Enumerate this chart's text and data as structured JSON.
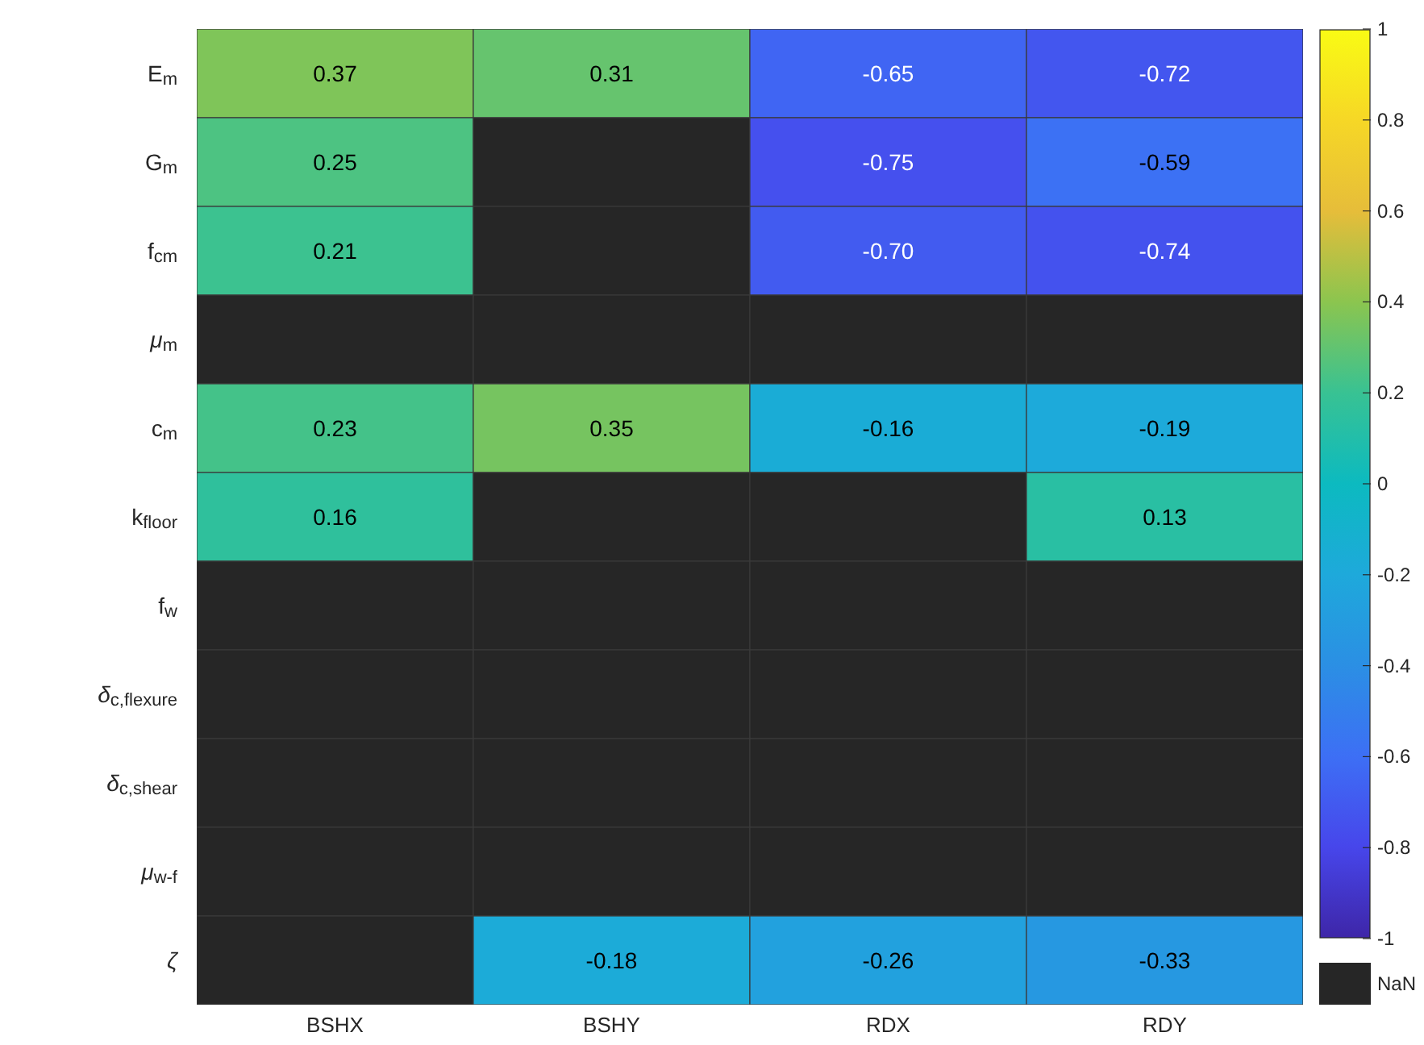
{
  "chart_data": {
    "type": "heatmap",
    "categories": [
      "BSHX",
      "BSHY",
      "RDX",
      "RDY"
    ],
    "y_categories": [
      "E$_{m}$",
      "G$_{m}$",
      "f$_{cm}$",
      "μ$_{m}$",
      "c$_{m}$",
      "k$_{floor}$",
      "f$_{w}$",
      "δ$_{c,flexure}$",
      "δ$_{c,shear}$",
      "μ$_{w-f}$",
      "ζ"
    ],
    "cells": [
      [
        0.37,
        0.31,
        -0.65,
        -0.72
      ],
      [
        0.25,
        null,
        -0.75,
        -0.59
      ],
      [
        0.21,
        null,
        -0.7,
        -0.74
      ],
      [
        null,
        null,
        null,
        null
      ],
      [
        0.23,
        0.35,
        -0.16,
        -0.19
      ],
      [
        0.16,
        null,
        null,
        0.13
      ],
      [
        null,
        null,
        null,
        null
      ],
      [
        null,
        null,
        null,
        null
      ],
      [
        null,
        null,
        null,
        null
      ],
      [
        null,
        null,
        null,
        null
      ],
      [
        null,
        -0.18,
        -0.26,
        -0.33
      ]
    ],
    "cell_labels": [
      [
        "0.37",
        "0.31",
        "-0.65",
        "-0.72"
      ],
      [
        "0.25",
        null,
        "-0.75",
        "-0.59"
      ],
      [
        "0.21",
        null,
        "-0.70",
        "-0.74"
      ],
      [
        null,
        null,
        null,
        null
      ],
      [
        "0.23",
        "0.35",
        "-0.16",
        "-0.19"
      ],
      [
        "0.16",
        null,
        null,
        "0.13"
      ],
      [
        null,
        null,
        null,
        null
      ],
      [
        null,
        null,
        null,
        null
      ],
      [
        null,
        null,
        null,
        null
      ],
      [
        null,
        null,
        null,
        null
      ],
      [
        null,
        "-0.18",
        "-0.26",
        "-0.33"
      ]
    ],
    "clim": [
      -1,
      1
    ],
    "cticks": [
      -1,
      -0.8,
      -0.6,
      -0.4,
      -0.2,
      0,
      0.2,
      0.4,
      0.6,
      0.8,
      1
    ],
    "annotations": [
      "NaN"
    ]
  }
}
